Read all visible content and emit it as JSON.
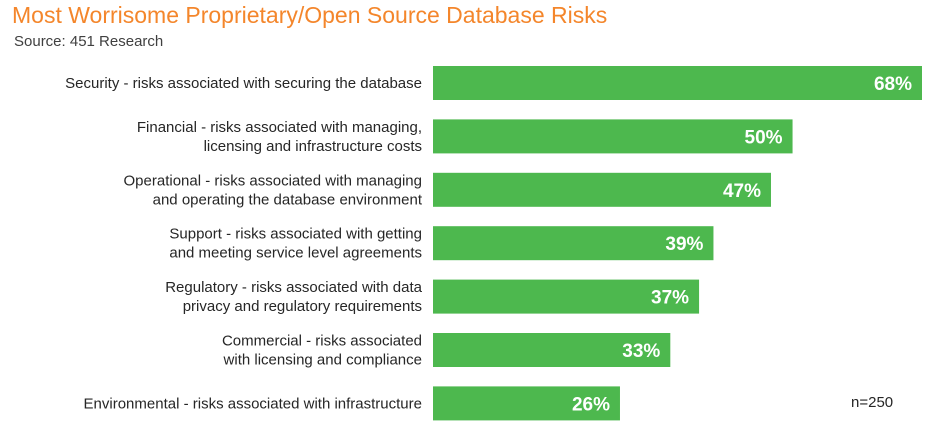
{
  "chart_data": {
    "type": "bar",
    "orientation": "horizontal",
    "title": "Most Worrisome Proprietary/Open Source Database Risks",
    "subtitle": "Source: 451 Research",
    "note": "n=250",
    "unit": "%",
    "bar_color": "#4db84e",
    "value_label_color": "#ffffff",
    "title_color": "#f4862b",
    "categories": [
      [
        "Security - risks associated with securing the database"
      ],
      [
        "Financial - risks associated with managing,",
        "licensing and infrastructure costs"
      ],
      [
        "Operational - risks associated with managing",
        "and operating the database environment"
      ],
      [
        "Support - risks associated with getting",
        "and meeting service level agreements"
      ],
      [
        "Regulatory - risks associated with data",
        "privacy and regulatory requirements"
      ],
      [
        "Commercial - risks associated",
        "with licensing and compliance"
      ],
      [
        "Environmental - risks associated with infrastructure"
      ]
    ],
    "values": [
      68,
      50,
      47,
      39,
      37,
      33,
      26
    ],
    "value_labels": [
      "68%",
      "50%",
      "47%",
      "39%",
      "37%",
      "33%",
      "26%"
    ],
    "xlim": [
      0,
      68
    ],
    "grid": false,
    "legend": "none"
  }
}
